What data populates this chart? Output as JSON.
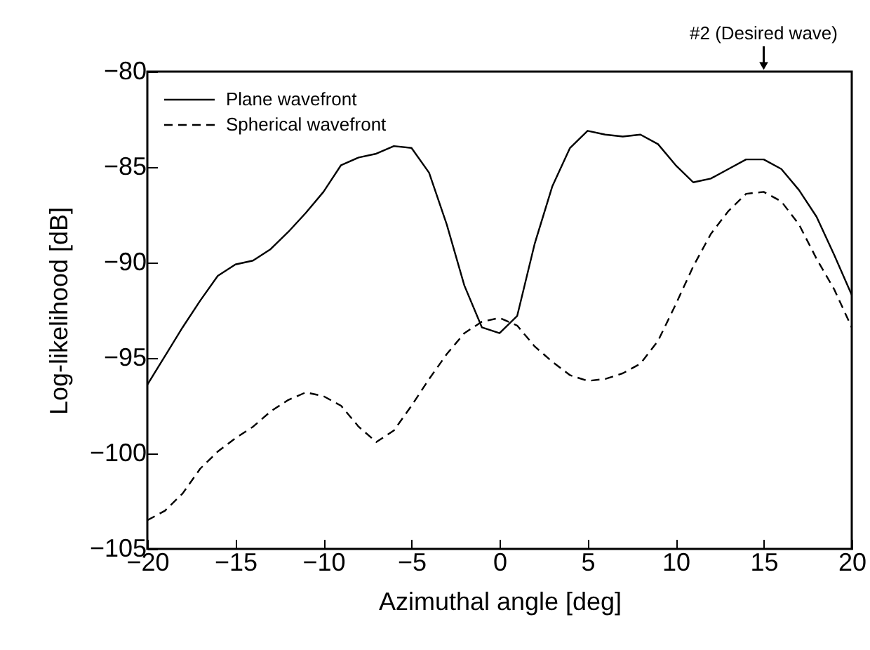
{
  "chart_data": {
    "type": "line",
    "xlabel": "Azimuthal angle [deg]",
    "ylabel": "Log-likelihood [dB]",
    "x": [
      -20,
      -19,
      -18,
      -17,
      -16,
      -15,
      -14,
      -13,
      -12,
      -11,
      -10,
      -9,
      -8,
      -7,
      -6,
      -5,
      -4,
      -3,
      -2,
      -1,
      0,
      1,
      2,
      3,
      4,
      5,
      6,
      7,
      8,
      9,
      10,
      11,
      12,
      13,
      14,
      15,
      16,
      17,
      18,
      19,
      20
    ],
    "series": [
      {
        "name": "Plane wavefront",
        "color": "#000000",
        "line_style": "solid",
        "values": [
          -96.4,
          -94.9,
          -93.4,
          -92.0,
          -90.7,
          -90.1,
          -89.9,
          -89.3,
          -88.4,
          -87.4,
          -86.3,
          -84.9,
          -84.5,
          -84.3,
          -83.9,
          -84.0,
          -85.3,
          -88.0,
          -91.2,
          -93.4,
          -93.7,
          -92.8,
          -89.0,
          -86.0,
          -84.0,
          -83.1,
          -83.3,
          -83.4,
          -83.3,
          -83.8,
          -84.9,
          -85.8,
          -85.6,
          -85.1,
          -84.6,
          -84.6,
          -85.1,
          -86.2,
          -87.6,
          -89.6,
          -91.7
        ]
      },
      {
        "name": "Spherical wavefront",
        "color": "#000000",
        "line_style": "dashed",
        "values": [
          -103.5,
          -103.0,
          -102.1,
          -100.8,
          -99.9,
          -99.2,
          -98.6,
          -97.8,
          -97.2,
          -96.8,
          -97.0,
          -97.5,
          -98.6,
          -99.4,
          -98.8,
          -97.5,
          -96.1,
          -94.8,
          -93.7,
          -93.1,
          -92.9,
          -93.3,
          -94.4,
          -95.2,
          -95.9,
          -96.2,
          -96.1,
          -95.8,
          -95.3,
          -94.1,
          -92.2,
          -90.2,
          -88.5,
          -87.3,
          -86.4,
          -86.3,
          -86.8,
          -88.0,
          -89.8,
          -91.4,
          -93.4
        ]
      }
    ],
    "xlim": [
      -20,
      20
    ],
    "xticks": [
      -20,
      -15,
      -10,
      -5,
      0,
      5,
      10,
      15,
      20
    ],
    "ylim": [
      -105,
      -80
    ],
    "yticks": [
      -105,
      -100,
      -95,
      -90,
      -85,
      -80
    ],
    "legend": "top left",
    "grid": false,
    "annotations": [
      {
        "text": "#2 (Desired wave)",
        "x": 15
      }
    ]
  }
}
